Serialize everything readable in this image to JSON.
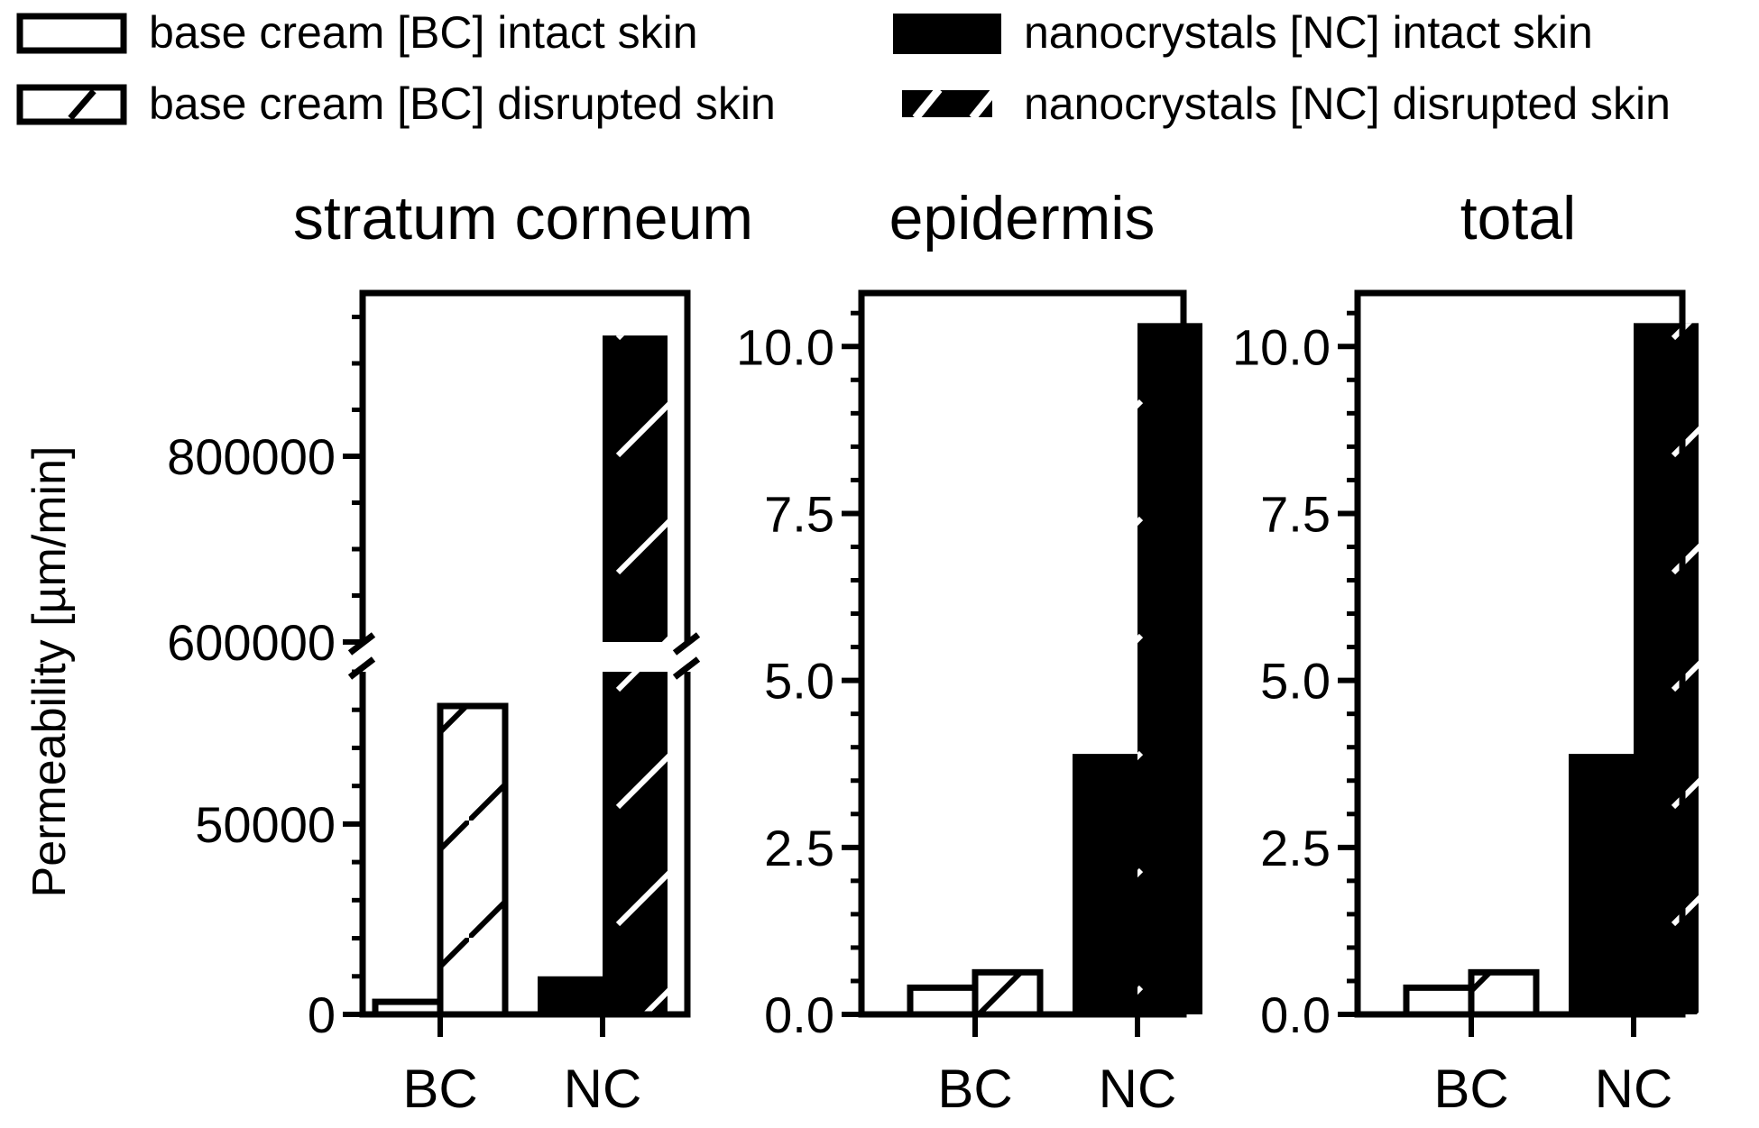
{
  "legend": {
    "items": [
      {
        "label": "base cream [BC] intact skin",
        "style": "open"
      },
      {
        "label": "base cream [BC] disrupted skin",
        "style": "open-hatched"
      },
      {
        "label": "nanocrystals [NC] intact skin",
        "style": "filled"
      },
      {
        "label": "nanocrystals [NC] disrupted skin",
        "style": "filled-hatched"
      }
    ]
  },
  "ylabel": "Permeability [µm/min]",
  "colors": {
    "fill": "#000000",
    "background": "#ffffff",
    "hatch_on_black": "#ffffff"
  },
  "chart_data": [
    {
      "type": "bar",
      "title": "stratum corneum",
      "categories": [
        "BC",
        "NC"
      ],
      "series": [
        {
          "name": "base cream [BC] intact skin",
          "values": [
            3300,
            null
          ]
        },
        {
          "name": "base cream [BC] disrupted skin",
          "values": [
            81000,
            null
          ]
        },
        {
          "name": "nanocrystals [NC] intact skin",
          "values": [
            null,
            10000
          ]
        },
        {
          "name": "nanocrystals [NC] disrupted skin",
          "values": [
            null,
            930000
          ]
        }
      ],
      "broken_axis": true,
      "lower_range": [
        0,
        90000
      ],
      "upper_range": [
        600000,
        1000000
      ],
      "yticks": [
        {
          "value": 0,
          "label": "0"
        },
        {
          "value": 50000,
          "label": "50000"
        },
        {
          "value": 600000,
          "label": "600000"
        },
        {
          "value": 800000,
          "label": "800000"
        }
      ],
      "xlabel": "",
      "grid": false
    },
    {
      "type": "bar",
      "title": "epidermis",
      "categories": [
        "BC",
        "NC"
      ],
      "series": [
        {
          "name": "base cream [BC] intact skin",
          "values": [
            0.4,
            null
          ]
        },
        {
          "name": "base cream [BC] disrupted skin",
          "values": [
            0.63,
            null
          ]
        },
        {
          "name": "nanocrystals [NC] intact skin",
          "values": [
            null,
            3.9
          ]
        },
        {
          "name": "nanocrystals [NC] disrupted skin",
          "values": [
            null,
            10.35
          ]
        }
      ],
      "ylim": [
        0,
        10.8
      ],
      "yticks": [
        {
          "value": 0,
          "label": "0.0"
        },
        {
          "value": 2.5,
          "label": "2.5"
        },
        {
          "value": 5,
          "label": "5.0"
        },
        {
          "value": 7.5,
          "label": "7.5"
        },
        {
          "value": 10,
          "label": "10.0"
        }
      ],
      "xlabel": "",
      "grid": false
    },
    {
      "type": "bar",
      "title": "total",
      "categories": [
        "BC",
        "NC"
      ],
      "series": [
        {
          "name": "base cream [BC] intact skin",
          "values": [
            0.4,
            null
          ]
        },
        {
          "name": "base cream [BC] disrupted skin",
          "values": [
            0.63,
            null
          ]
        },
        {
          "name": "nanocrystals [NC] intact skin",
          "values": [
            null,
            3.9
          ]
        },
        {
          "name": "nanocrystals [NC] disrupted skin",
          "values": [
            null,
            10.35
          ]
        }
      ],
      "ylim": [
        0,
        10.8
      ],
      "yticks": [
        {
          "value": 0,
          "label": "0.0"
        },
        {
          "value": 2.5,
          "label": "2.5"
        },
        {
          "value": 5,
          "label": "5.0"
        },
        {
          "value": 7.5,
          "label": "7.5"
        },
        {
          "value": 10,
          "label": "10.0"
        }
      ],
      "xlabel": "",
      "grid": false
    }
  ]
}
